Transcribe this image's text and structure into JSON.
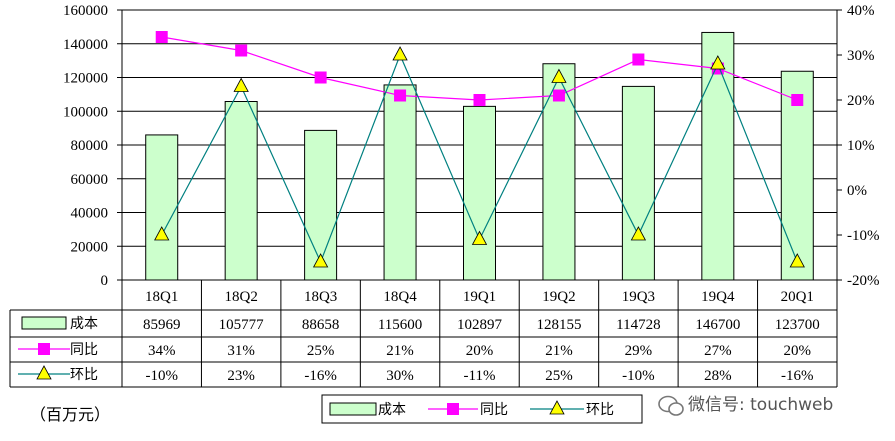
{
  "chart_data": {
    "type": "bar",
    "categories": [
      "18Q1",
      "18Q2",
      "18Q3",
      "18Q4",
      "19Q1",
      "19Q2",
      "19Q3",
      "19Q4",
      "20Q1"
    ],
    "left_axis": {
      "ylim": [
        0,
        160000
      ],
      "ticks": [
        "160000",
        "140000",
        "120000",
        "100000",
        "80000",
        "60000",
        "40000",
        "20000",
        "0"
      ]
    },
    "right_axis": {
      "ylim": [
        -20,
        40
      ],
      "ticks": [
        "40%",
        "30%",
        "20%",
        "10%",
        "0%",
        "-10%",
        "-20%"
      ]
    },
    "series": [
      {
        "name": "成本",
        "kind": "bar",
        "axis": "left",
        "color": "#ccffcc",
        "values": [
          85969,
          105777,
          88658,
          115600,
          102897,
          128155,
          114728,
          146700,
          123700
        ],
        "labels": [
          "85969",
          "105777",
          "88658",
          "115600",
          "102897",
          "128155",
          "114728",
          "146700",
          "123700"
        ]
      },
      {
        "name": "同比",
        "kind": "line",
        "axis": "right",
        "color": "#ff00ff",
        "marker": "square",
        "values": [
          34,
          31,
          25,
          21,
          20,
          21,
          29,
          27,
          20
        ],
        "labels": [
          "34%",
          "31%",
          "25%",
          "21%",
          "20%",
          "21%",
          "29%",
          "27%",
          "20%"
        ]
      },
      {
        "name": "环比",
        "kind": "line",
        "axis": "right",
        "color": "#008080",
        "marker": "triangle",
        "marker_color": "#ffff00",
        "values": [
          -10,
          23,
          -16,
          30,
          -11,
          25,
          -10,
          28,
          -16
        ],
        "labels": [
          "-10%",
          "23%",
          "-16%",
          "30%",
          "-11%",
          "25%",
          "-10%",
          "28%",
          "-16%"
        ]
      }
    ],
    "unit_label": "（百万元）",
    "legend_placement": "bottom",
    "grid": true
  },
  "watermark": "微信号: touchweb"
}
